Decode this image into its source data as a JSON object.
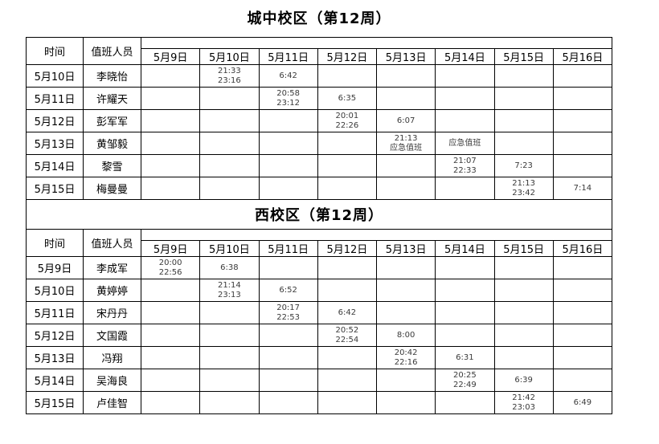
{
  "page": {
    "background": "#ffffff",
    "border_color": "#000000",
    "label_color": "#000000",
    "time_color": "#3a3a3a"
  },
  "tables": [
    {
      "title": "城中校区（第12周）",
      "title_placement": "above",
      "col_time_label": "时间",
      "col_staff_label": "值班人员",
      "date_columns": [
        "5月9日",
        "5月10日",
        "5月11日",
        "5月12日",
        "5月13日",
        "5月14日",
        "5月15日",
        "5月16日"
      ],
      "rows": [
        {
          "date": "5月10日",
          "name": "李晓怡",
          "cells": [
            [],
            [
              "21:33",
              "23:16"
            ],
            [
              "6:42"
            ],
            [],
            [],
            [],
            [],
            []
          ]
        },
        {
          "date": "5月11日",
          "name": "许耀天",
          "cells": [
            [],
            [],
            [
              "20:58",
              "23:12"
            ],
            [
              "6:35"
            ],
            [],
            [],
            [],
            []
          ]
        },
        {
          "date": "5月12日",
          "name": "彭军军",
          "cells": [
            [],
            [],
            [],
            [
              "20:01",
              "22:26"
            ],
            [
              "6:07"
            ],
            [],
            [],
            []
          ]
        },
        {
          "date": "5月13日",
          "name": "黄邹毅",
          "cells": [
            [],
            [],
            [],
            [],
            [
              "21:13",
              "应急值班"
            ],
            [
              "应急值班"
            ],
            [],
            []
          ]
        },
        {
          "date": "5月14日",
          "name": "黎雪",
          "cells": [
            [],
            [],
            [],
            [],
            [],
            [
              "21:07",
              "22:33"
            ],
            [
              "7:23"
            ],
            []
          ]
        },
        {
          "date": "5月15日",
          "name": "梅曼曼",
          "cells": [
            [],
            [],
            [],
            [],
            [],
            [],
            [
              "21:13",
              "23:42"
            ],
            [
              "7:14"
            ]
          ]
        }
      ]
    },
    {
      "title": "西校区（第12周）",
      "title_placement": "merged_row",
      "col_time_label": "时间",
      "col_staff_label": "值班人员",
      "date_columns": [
        "5月9日",
        "5月10日",
        "5月11日",
        "5月12日",
        "5月13日",
        "5月14日",
        "5月15日",
        "5月16日"
      ],
      "rows": [
        {
          "date": "5月9日",
          "name": "李成军",
          "cells": [
            [
              "20:00",
              "22:56"
            ],
            [
              "6:38"
            ],
            [],
            [],
            [],
            [],
            [],
            []
          ]
        },
        {
          "date": "5月10日",
          "name": "黄婷婷",
          "cells": [
            [],
            [
              "21:14",
              "23:13"
            ],
            [
              "6:52"
            ],
            [],
            [],
            [],
            [],
            []
          ]
        },
        {
          "date": "5月11日",
          "name": "宋丹丹",
          "cells": [
            [],
            [],
            [
              "20:17",
              "22:53"
            ],
            [
              "6:42"
            ],
            [],
            [],
            [],
            []
          ]
        },
        {
          "date": "5月12日",
          "name": "文国霞",
          "cells": [
            [],
            [],
            [],
            [
              "20:52",
              "22:54"
            ],
            [
              "8:00"
            ],
            [],
            [],
            []
          ]
        },
        {
          "date": "5月13日",
          "name": "冯翔",
          "cells": [
            [],
            [],
            [],
            [],
            [
              "20:42",
              "22:16"
            ],
            [
              "6:31"
            ],
            [],
            []
          ]
        },
        {
          "date": "5月14日",
          "name": "吴海良",
          "cells": [
            [],
            [],
            [],
            [],
            [],
            [
              "20:25",
              "22:49"
            ],
            [
              "6:39"
            ],
            []
          ]
        },
        {
          "date": "5月15日",
          "name": "卢佳智",
          "cells": [
            [],
            [],
            [],
            [],
            [],
            [],
            [
              "21:42",
              "23:03"
            ],
            [
              "6:49"
            ]
          ]
        }
      ]
    }
  ]
}
